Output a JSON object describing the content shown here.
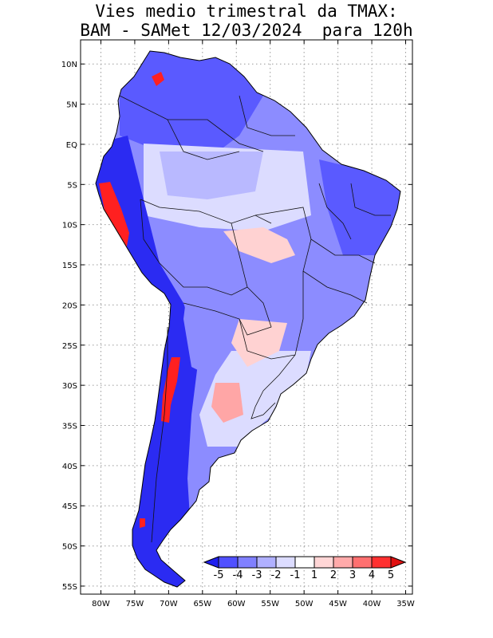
{
  "title": {
    "line1": "Vies medio trimestral da TMAX:",
    "line2": "BAM - SAMet 12/03/2024  para 120h"
  },
  "map": {
    "lon_range": [
      -83,
      -34
    ],
    "lat_range": [
      -56,
      13
    ],
    "grid": true,
    "lon_ticks": [
      {
        "value": -80,
        "label": "80W"
      },
      {
        "value": -75,
        "label": "75W"
      },
      {
        "value": -70,
        "label": "70W"
      },
      {
        "value": -65,
        "label": "65W"
      },
      {
        "value": -60,
        "label": "60W"
      },
      {
        "value": -55,
        "label": "55W"
      },
      {
        "value": -50,
        "label": "50W"
      },
      {
        "value": -45,
        "label": "45W"
      },
      {
        "value": -40,
        "label": "40W"
      },
      {
        "value": -35,
        "label": "35W"
      }
    ],
    "lat_ticks": [
      {
        "value": 10,
        "label": "10N"
      },
      {
        "value": 5,
        "label": "5N"
      },
      {
        "value": 0,
        "label": "EQ"
      },
      {
        "value": -5,
        "label": "5S"
      },
      {
        "value": -10,
        "label": "10S"
      },
      {
        "value": -15,
        "label": "15S"
      },
      {
        "value": -20,
        "label": "20S"
      },
      {
        "value": -25,
        "label": "25S"
      },
      {
        "value": -30,
        "label": "30S"
      },
      {
        "value": -35,
        "label": "35S"
      },
      {
        "value": -40,
        "label": "40S"
      },
      {
        "value": -45,
        "label": "45S"
      },
      {
        "value": -50,
        "label": "50S"
      },
      {
        "value": -55,
        "label": "55S"
      }
    ]
  },
  "colorbar": {
    "labels": [
      "-5",
      "-4",
      "-3",
      "-2",
      "-1",
      "1",
      "2",
      "3",
      "4",
      "5"
    ],
    "colors": [
      "#1f1ff0",
      "#5050ff",
      "#8080ff",
      "#b0b0ff",
      "#dcdcff",
      "#ffffff",
      "#ffd6d6",
      "#ffaaaa",
      "#ff7070",
      "#ff3030",
      "#e01010"
    ]
  },
  "field_colors": {
    "strong_cool": "#2b2bf2",
    "cool": "#5a5aff",
    "mid_cool": "#8c8cff",
    "light_cool": "#b9b9ff",
    "pale_cool": "#dcdcff",
    "neutral": "#ffffff",
    "pale_warm": "#ffd2d2",
    "warm": "#ffa6a6",
    "hot": "#ff2020"
  }
}
